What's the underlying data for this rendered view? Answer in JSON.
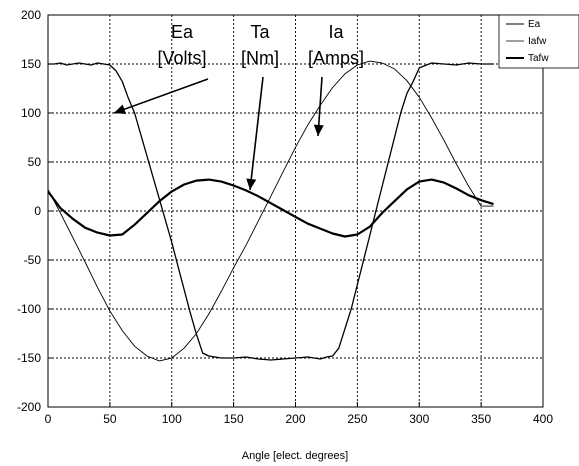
{
  "chart_data": {
    "type": "line",
    "title": "",
    "xlabel": "Angle [elect. degrees]",
    "ylabel": "",
    "xlim": [
      0,
      400
    ],
    "ylim": [
      -200,
      200
    ],
    "xticks": [
      0,
      50,
      100,
      150,
      200,
      250,
      300,
      350,
      400
    ],
    "yticks": [
      -200,
      -150,
      -100,
      -50,
      0,
      50,
      100,
      150,
      200
    ],
    "grid": true,
    "legend_position": "top-right",
    "series": [
      {
        "name": "Ea",
        "color": "#000000",
        "x": [
          0,
          5,
          10,
          15,
          20,
          25,
          30,
          35,
          40,
          45,
          50,
          55,
          60,
          65,
          70,
          75,
          80,
          85,
          90,
          95,
          100,
          105,
          110,
          115,
          120,
          125,
          130,
          140,
          150,
          160,
          170,
          180,
          190,
          200,
          210,
          220,
          225,
          230,
          235,
          240,
          245,
          250,
          255,
          260,
          265,
          270,
          275,
          280,
          285,
          290,
          295,
          300,
          310,
          320,
          330,
          340,
          350,
          360
        ],
        "y": [
          150,
          150,
          151,
          149,
          150,
          151,
          150,
          149,
          151,
          150,
          149,
          143,
          132,
          115,
          100,
          78,
          56,
          34,
          12,
          -10,
          -32,
          -56,
          -80,
          -104,
          -126,
          -145,
          -148,
          -150,
          -150,
          -149,
          -151,
          -152,
          -151,
          -150,
          -149,
          -151,
          -149,
          -148,
          -140,
          -120,
          -100,
          -75,
          -50,
          -25,
          0,
          25,
          50,
          75,
          100,
          120,
          132,
          146,
          151,
          150,
          149,
          151,
          150,
          150
        ]
      },
      {
        "name": "Iafw",
        "color": "#000000",
        "x": [
          0,
          10,
          20,
          30,
          40,
          50,
          60,
          70,
          80,
          90,
          100,
          110,
          120,
          130,
          140,
          150,
          160,
          170,
          180,
          190,
          200,
          210,
          220,
          230,
          240,
          250,
          260,
          270,
          280,
          290,
          300,
          310,
          320,
          330,
          340,
          350,
          360
        ],
        "y": [
          22,
          -2,
          -27,
          -52,
          -78,
          -102,
          -122,
          -138,
          -148,
          -153,
          -150,
          -140,
          -125,
          -105,
          -82,
          -58,
          -35,
          -10,
          15,
          40,
          65,
          88,
          108,
          126,
          140,
          149,
          153,
          151,
          145,
          133,
          116,
          95,
          72,
          48,
          25,
          5,
          5
        ]
      },
      {
        "name": "Tafw",
        "color": "#000000",
        "x": [
          0,
          10,
          20,
          30,
          40,
          50,
          60,
          70,
          80,
          90,
          100,
          110,
          120,
          130,
          140,
          150,
          160,
          170,
          180,
          190,
          200,
          210,
          220,
          230,
          240,
          250,
          260,
          270,
          280,
          290,
          300,
          310,
          320,
          330,
          340,
          350,
          360
        ],
        "y": [
          20,
          3,
          -8,
          -17,
          -22,
          -25,
          -24,
          -14,
          -2,
          10,
          20,
          27,
          31,
          32,
          30,
          26,
          21,
          15,
          8,
          1,
          -6,
          -13,
          -18,
          -23,
          -26,
          -24,
          -16,
          -2,
          10,
          22,
          30,
          32,
          29,
          23,
          16,
          11,
          7
        ]
      }
    ],
    "annotations": [
      {
        "lines": [
          "Ea",
          "[Volts]"
        ]
      },
      {
        "lines": [
          "Ta",
          "[Nm]"
        ]
      },
      {
        "lines": [
          "Ia",
          "[Amps]"
        ]
      }
    ]
  }
}
